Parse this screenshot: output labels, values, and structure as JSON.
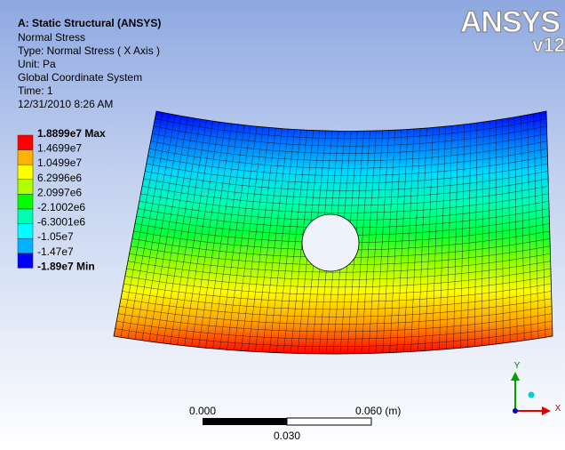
{
  "header": {
    "title": "A: Static Structural (ANSYS)",
    "lines": [
      "Normal Stress",
      "Type: Normal Stress ( X Axis )",
      "Unit: Pa",
      "Global Coordinate System",
      "Time: 1",
      "12/31/2010 8:26 AM"
    ]
  },
  "legend": {
    "entries": [
      "1.8899e7 Max",
      "1.4699e7",
      "1.0499e7",
      "6.2996e6",
      "2.0997e6",
      "-2.1002e6",
      "-6.3001e6",
      "-1.05e7",
      "-1.47e7",
      "-1.89e7 Min"
    ]
  },
  "logo": {
    "brand": "ANSYS",
    "version": "v12"
  },
  "scale_bar": {
    "start": "0.000",
    "end": "0.060 (m)",
    "mid": "0.030"
  },
  "triad": {
    "x": "X",
    "y": "Y"
  }
}
